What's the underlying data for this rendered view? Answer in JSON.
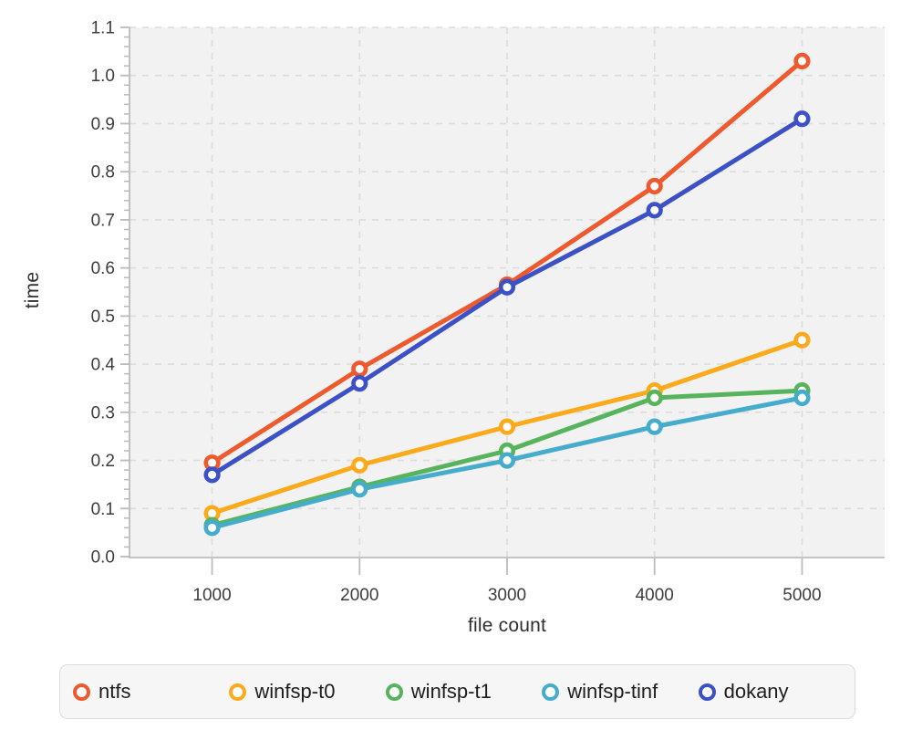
{
  "chart_data": {
    "type": "line",
    "x": [
      1000,
      2000,
      3000,
      4000,
      5000
    ],
    "x_tick_labels": [
      "1000",
      "2000",
      "3000",
      "4000",
      "5000"
    ],
    "y_tick_labels": [
      "0.0",
      "0.1",
      "0.2",
      "0.3",
      "0.4",
      "0.5",
      "0.6",
      "0.7",
      "0.8",
      "0.9",
      "1.0",
      "1.1"
    ],
    "series": [
      {
        "name": "ntfs",
        "color": "#ee5a2e",
        "values": [
          0.195,
          0.39,
          0.565,
          0.77,
          1.03
        ]
      },
      {
        "name": "winfsp-t0",
        "color": "#fbaa1c",
        "values": [
          0.09,
          0.19,
          0.27,
          0.345,
          0.45
        ]
      },
      {
        "name": "winfsp-t1",
        "color": "#57b45c",
        "values": [
          0.065,
          0.145,
          0.22,
          0.33,
          0.345
        ]
      },
      {
        "name": "winfsp-tinf",
        "color": "#45adcb",
        "values": [
          0.06,
          0.14,
          0.2,
          0.27,
          0.33
        ]
      },
      {
        "name": "dokany",
        "color": "#3c51c5",
        "values": [
          0.17,
          0.36,
          0.56,
          0.72,
          0.91
        ]
      }
    ],
    "title": "",
    "xlabel": "file count",
    "ylabel": "time",
    "xlim": [
      440,
      5560
    ],
    "ylim": [
      0,
      1.1
    ],
    "y_major_step": 0.1,
    "y_minor_step": 0.02,
    "grid": true,
    "grid_style": "dashed",
    "legend_position": "bottom"
  },
  "style_colors": {
    "plot_background": "#f2f2f2",
    "gridline": "#dcdcdc",
    "axis": "#bbbbbb",
    "tick_label": "#3d3d3d",
    "marker_fill": "#ffffff"
  }
}
